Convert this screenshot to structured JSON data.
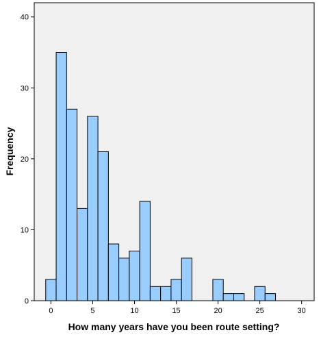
{
  "chart_data": {
    "type": "bar",
    "title": "",
    "xlabel": "How many years have you been route setting?",
    "ylabel": "Frequency",
    "bin_width": 1.25,
    "bins": [
      {
        "x0": -0.625,
        "x1": 0.625,
        "value": 3
      },
      {
        "x0": 0.625,
        "x1": 1.875,
        "value": 35
      },
      {
        "x0": 1.875,
        "x1": 3.125,
        "value": 27
      },
      {
        "x0": 3.125,
        "x1": 4.375,
        "value": 13
      },
      {
        "x0": 4.375,
        "x1": 5.625,
        "value": 26
      },
      {
        "x0": 5.625,
        "x1": 6.875,
        "value": 21
      },
      {
        "x0": 6.875,
        "x1": 8.125,
        "value": 8
      },
      {
        "x0": 8.125,
        "x1": 9.375,
        "value": 6
      },
      {
        "x0": 9.375,
        "x1": 10.625,
        "value": 7
      },
      {
        "x0": 10.625,
        "x1": 11.875,
        "value": 14
      },
      {
        "x0": 11.875,
        "x1": 13.125,
        "value": 2
      },
      {
        "x0": 13.125,
        "x1": 14.375,
        "value": 2
      },
      {
        "x0": 14.375,
        "x1": 15.625,
        "value": 3
      },
      {
        "x0": 15.625,
        "x1": 16.875,
        "value": 6
      },
      {
        "x0": 19.375,
        "x1": 20.625,
        "value": 3
      },
      {
        "x0": 20.625,
        "x1": 21.875,
        "value": 1
      },
      {
        "x0": 21.875,
        "x1": 23.125,
        "value": 1
      },
      {
        "x0": 24.375,
        "x1": 25.625,
        "value": 2
      },
      {
        "x0": 25.625,
        "x1": 26.875,
        "value": 1
      }
    ],
    "xlim": [
      -2.0,
      31.5
    ],
    "ylim": [
      0,
      42
    ],
    "x_ticks": [
      {
        "value": 0,
        "label": "0"
      },
      {
        "value": 5,
        "label": "5"
      },
      {
        "value": 10,
        "label": "10"
      },
      {
        "value": 15,
        "label": "15"
      },
      {
        "value": 20,
        "label": "20"
      },
      {
        "value": 25,
        "label": "25"
      },
      {
        "value": 30,
        "label": "30"
      }
    ],
    "y_ticks": [
      {
        "value": 0,
        "label": "0"
      },
      {
        "value": 10,
        "label": "10"
      },
      {
        "value": 20,
        "label": "20"
      },
      {
        "value": 30,
        "label": "30"
      },
      {
        "value": 40,
        "label": "40"
      }
    ],
    "grid": false,
    "legend": "none",
    "colors": {
      "bar_fill": "#99CCFF",
      "bar_stroke": "#000000",
      "plot_background": "#F0F0F0",
      "axis": "#000000"
    }
  }
}
